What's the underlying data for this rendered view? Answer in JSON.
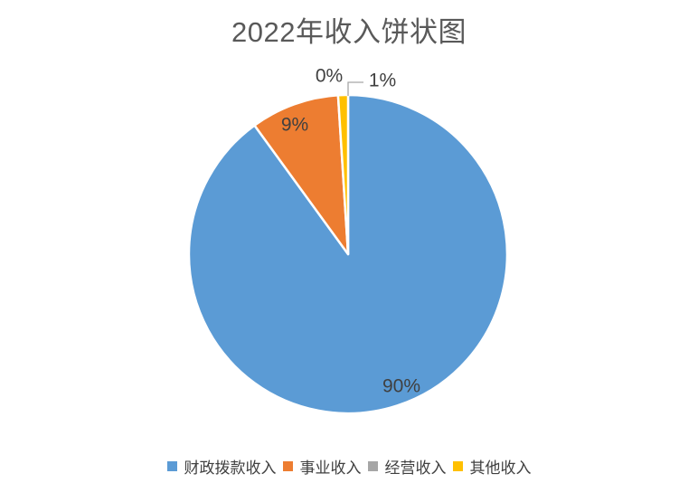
{
  "chart_data": {
    "type": "pie",
    "title": "2022年收入饼状图",
    "legend_position": "bottom",
    "start_angle_deg": 0,
    "direction": "clockwise",
    "background": "#FFFFFF",
    "label_color": "#404040",
    "title_color": "#595959",
    "leader_line_color": "#A6A6A6",
    "slice_border_color": "#FFFFFF",
    "slices": [
      {
        "name": "财政拨款收入",
        "value": 90,
        "label": "90%",
        "color": "#5B9BD5"
      },
      {
        "name": "事业收入",
        "value": 9,
        "label": "9%",
        "color": "#ED7D31"
      },
      {
        "name": "经营收入",
        "value": 0,
        "label": "0%",
        "color": "#A6A6A6"
      },
      {
        "name": "其他收入",
        "value": 1,
        "label": "1%",
        "color": "#FFC000"
      }
    ]
  }
}
